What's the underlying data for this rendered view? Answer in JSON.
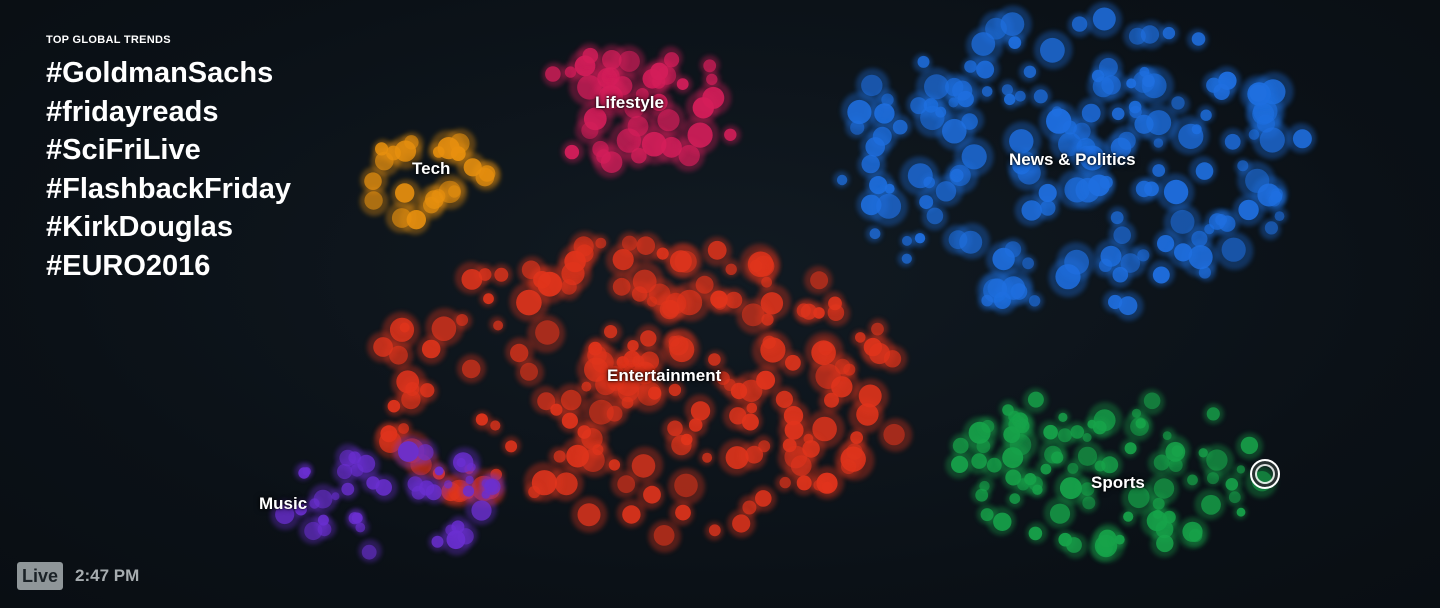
{
  "trends": {
    "heading": "TOP GLOBAL TRENDS",
    "items": [
      "#GoldmanSachs",
      "#fridayreads",
      "#SciFriLive",
      "#FlashbackFriday",
      "#KirkDouglas",
      "#EURO2016"
    ]
  },
  "clusters": [
    {
      "id": "lifestyle",
      "label": "Lifestyle",
      "color": "#d41e5a"
    },
    {
      "id": "tech",
      "label": "Tech",
      "color": "#e8900f"
    },
    {
      "id": "news",
      "label": "News & Politics",
      "color": "#1f6fe0"
    },
    {
      "id": "entertainment",
      "label": "Entertainment",
      "color": "#e0341c"
    },
    {
      "id": "music",
      "label": "Music",
      "color": "#6a2fd0"
    },
    {
      "id": "sports",
      "label": "Sports",
      "color": "#17a34a"
    }
  ],
  "status": {
    "live_label": "Live",
    "time": "2:47 PM"
  },
  "colors": {
    "background": "#0b1117",
    "badge": "#8f9699"
  }
}
